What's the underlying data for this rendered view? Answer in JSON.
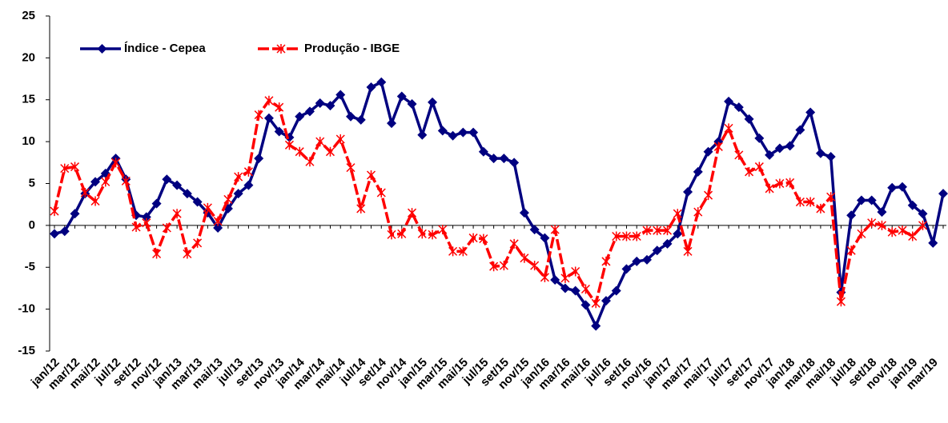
{
  "chart_data": {
    "type": "line",
    "categories": [
      "jan/12",
      null,
      "mar/12",
      null,
      "mai/12",
      null,
      "jul/12",
      null,
      "set/12",
      null,
      "nov/12",
      null,
      "jan/13",
      null,
      "mar/13",
      null,
      "mai/13",
      null,
      "jul/13",
      null,
      "set/13",
      null,
      "nov/13",
      null,
      "jan/14",
      null,
      "mar/14",
      null,
      "mai/14",
      null,
      "jul/14",
      null,
      "set/14",
      null,
      "nov/14",
      null,
      "jan/15",
      null,
      "mar/15",
      null,
      "mai/15",
      null,
      "jul/15",
      null,
      "set/15",
      null,
      "nov/15",
      null,
      "jan/16",
      null,
      "mar/16",
      null,
      "mai/16",
      null,
      "jul/16",
      null,
      "set/16",
      null,
      "nov/16",
      null,
      "jan/17",
      null,
      "mar/17",
      null,
      "mai/17",
      null,
      "jul/17",
      null,
      "set/17",
      null,
      "nov/17",
      null,
      "jan/18",
      null,
      "mar/18",
      null,
      "mai/18",
      null,
      "jul/18",
      null,
      "set/18",
      null,
      "nov/18",
      null,
      "jan/19",
      null,
      "mar/19",
      null
    ],
    "series": [
      {
        "name": "Índice - Cepea",
        "color": "#000080",
        "values": [
          -1,
          -0.7,
          1.4,
          3.8,
          5.2,
          6.2,
          8.0,
          5.5,
          1.2,
          1.0,
          2.6,
          5.5,
          4.8,
          3.8,
          2.8,
          1.5,
          -0.3,
          2.0,
          3.8,
          4.8,
          8.0,
          12.8,
          11.2,
          10.5,
          13.0,
          13.6,
          14.6,
          14.3,
          15.6,
          13.0,
          12.6,
          16.5,
          17.1,
          12.2,
          15.4,
          14.5,
          10.8,
          14.7,
          11.3,
          10.7,
          11.1,
          11.1,
          8.8,
          8.0,
          8.0,
          7.5,
          1.5,
          -0.5,
          -1.5,
          -6.5,
          -7.5,
          -7.8,
          -9.5,
          -12,
          -9,
          -7.8,
          -5.2,
          -4.3,
          -4.1,
          -3,
          -2.2,
          -1,
          4,
          6.4,
          8.8,
          10,
          14.8,
          14.1,
          12.7,
          10.4,
          8.4,
          9.2,
          9.5,
          11.4,
          13.5,
          8.6,
          8.2,
          -8,
          1.2,
          3.0,
          3.0,
          1.6,
          4.5,
          4.6,
          2.4,
          1.4,
          -2.1,
          3.8
        ]
      },
      {
        "name": "Produção - IBGE",
        "color": "#ff0000",
        "values": [
          1.7,
          6.8,
          7.0,
          3.9,
          2.9,
          5.2,
          7.5,
          5.3,
          -0.2,
          0.3,
          -3.4,
          -0.3,
          1.4,
          -3.4,
          -2.1,
          2.1,
          0.5,
          3.1,
          5.8,
          6.4,
          13.2,
          14.9,
          14.1,
          9.6,
          8.8,
          7.6,
          10.0,
          8.8,
          10.3,
          6.9,
          2.0,
          6.0,
          3.9,
          -1.1,
          -1.0,
          1.5,
          -1.0,
          -1.1,
          -0.5,
          -3.1,
          -3.1,
          -1.5,
          -1.6,
          -4.9,
          -4.8,
          -2.2,
          -3.9,
          -4.8,
          -6.2,
          -0.5,
          -6.3,
          -5.5,
          -7.6,
          -9.3,
          -4.3,
          -1.3,
          -1.3,
          -1.3,
          -0.6,
          -0.6,
          -0.6,
          1.4,
          -3.1,
          1.6,
          3.6,
          9.4,
          11.6,
          8.4,
          6.4,
          7.0,
          4.4,
          5.0,
          5.1,
          2.8,
          2.8,
          2.0,
          3.4,
          -9.1,
          -3.0,
          -1.0,
          0.3,
          0.0,
          -0.8,
          -0.6,
          -1.3,
          0.0,
          null,
          null
        ]
      }
    ],
    "ylim": [
      -15,
      25
    ],
    "yticks": [
      -15,
      -10,
      -5,
      0,
      5,
      10,
      15,
      20,
      25
    ],
    "legend": "upper left"
  }
}
